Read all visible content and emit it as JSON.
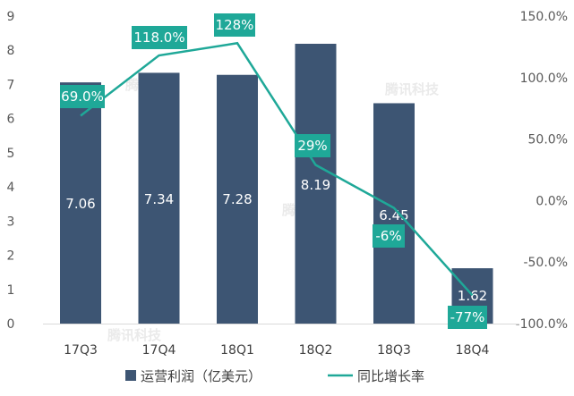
{
  "chart_data": {
    "type": "bar+line",
    "categories": [
      "17Q3",
      "17Q4",
      "18Q1",
      "18Q2",
      "18Q3",
      "18Q4"
    ],
    "series": [
      {
        "name": "运营利润（亿美元）",
        "type": "bar",
        "axis": "left",
        "values": [
          7.06,
          7.34,
          7.28,
          8.19,
          6.45,
          1.62
        ],
        "labels": [
          "7.06",
          "7.34",
          "7.28",
          "8.19",
          "6.45",
          "1.62"
        ],
        "color": "#3d5573"
      },
      {
        "name": "同比增长率",
        "type": "line",
        "axis": "right",
        "values": [
          69.0,
          118.0,
          128.0,
          29.0,
          -6.0,
          -77.0
        ],
        "labels": [
          "69.0%",
          "118.0%",
          "128%",
          "29%",
          "-6%",
          "-77%"
        ],
        "color": "#1fa898"
      }
    ],
    "y_left": {
      "min": 0,
      "max": 9,
      "ticks": [
        "0",
        "1",
        "2",
        "3",
        "4",
        "5",
        "6",
        "7",
        "8",
        "9"
      ]
    },
    "y_right": {
      "min": -100,
      "max": 150,
      "ticks": [
        "-100.0%",
        "-50.0%",
        "0.0%",
        "50.0%",
        "100.0%",
        "150.0%"
      ]
    },
    "grid": false,
    "legend_position": "bottom",
    "watermark_text": "腾讯科技",
    "watermark_color": "#d9d9d9"
  }
}
